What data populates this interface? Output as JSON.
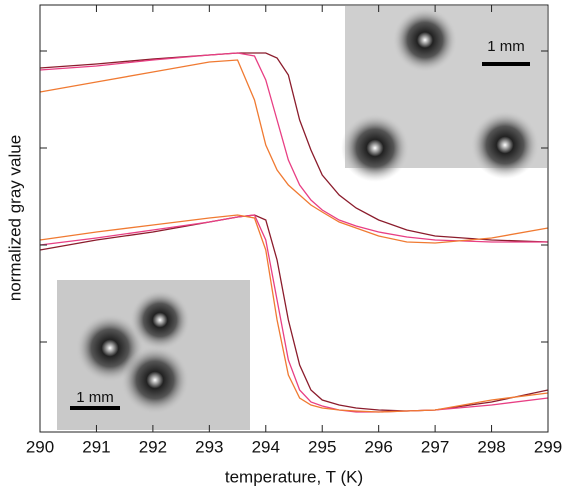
{
  "chart_data": {
    "type": "line",
    "x_label": "temperature, T (K)",
    "y_label": "normalized gray value",
    "annotations": [
      "1 mm",
      "1 mm"
    ],
    "xlim": [
      290,
      299
    ],
    "xticks": [
      290,
      291,
      292,
      293,
      294,
      295,
      296,
      297,
      298,
      299
    ],
    "ylim": [
      0,
      4.27
    ],
    "yticks": [
      0.9,
      1.87,
      2.84,
      3.81
    ],
    "x": [
      290,
      291,
      292,
      293,
      293.5,
      293.8,
      294,
      294.2,
      294.4,
      294.6,
      294.8,
      295,
      295.3,
      295.6,
      296,
      296.5,
      297,
      298,
      299
    ],
    "series": [
      {
        "color": "#8b1c2c",
        "values": [
          3.64,
          3.68,
          3.73,
          3.77,
          3.79,
          3.79,
          3.79,
          3.74,
          3.57,
          3.12,
          2.82,
          2.57,
          2.37,
          2.24,
          2.12,
          2.02,
          1.96,
          1.92,
          1.9
        ]
      },
      {
        "color": "#e83f84",
        "values": [
          3.62,
          3.66,
          3.72,
          3.77,
          3.79,
          3.76,
          3.52,
          3.12,
          2.72,
          2.47,
          2.32,
          2.22,
          2.12,
          2.06,
          2.0,
          1.95,
          1.92,
          1.9,
          1.9
        ]
      },
      {
        "color": "#f07a32",
        "values": [
          3.4,
          3.5,
          3.6,
          3.7,
          3.72,
          3.32,
          2.87,
          2.62,
          2.47,
          2.37,
          2.27,
          2.2,
          2.1,
          2.04,
          1.96,
          1.9,
          1.89,
          1.94,
          2.04
        ]
      },
      {
        "color": "#8b1c2c",
        "values": [
          1.82,
          1.92,
          2.0,
          2.1,
          2.15,
          2.17,
          2.12,
          1.72,
          1.12,
          0.67,
          0.42,
          0.32,
          0.27,
          0.24,
          0.22,
          0.21,
          0.22,
          0.3,
          0.42
        ]
      },
      {
        "color": "#e83f84",
        "values": [
          1.87,
          1.94,
          2.02,
          2.1,
          2.15,
          2.17,
          1.92,
          1.32,
          0.72,
          0.42,
          0.3,
          0.26,
          0.22,
          0.2,
          0.2,
          0.21,
          0.22,
          0.27,
          0.34
        ]
      },
      {
        "color": "#f07a32",
        "values": [
          1.92,
          2.0,
          2.07,
          2.14,
          2.17,
          2.14,
          1.82,
          1.12,
          0.57,
          0.34,
          0.27,
          0.24,
          0.22,
          0.21,
          0.2,
          0.21,
          0.22,
          0.32,
          0.39
        ]
      }
    ]
  }
}
